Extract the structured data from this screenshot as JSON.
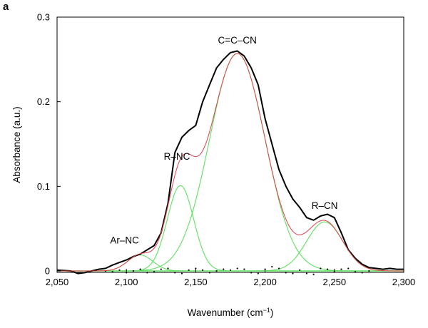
{
  "panel_label": "a",
  "chart_data": {
    "type": "line",
    "title": "",
    "xlabel": "Wavenumber (cm",
    "xlabel_sup": "−1",
    "xlabel_close": ")",
    "ylabel": "Absorbance (a.u.)",
    "xlim": [
      2050,
      2300
    ],
    "ylim": [
      -0.015,
      0.3
    ],
    "xticks": [
      2050,
      2100,
      2150,
      2200,
      2250,
      2300
    ],
    "xtick_labels": [
      "2,050",
      "2,100",
      "2,150",
      "2,200",
      "2,250",
      "2,300"
    ],
    "yticks": [
      0,
      0.1,
      0.2,
      0.3
    ],
    "ytick_labels": [
      "0",
      "0.1",
      "0.2",
      "0.3"
    ],
    "grid": false,
    "colors": {
      "measured": "#000000",
      "fit": "#e0404a",
      "component": "#5ee05e",
      "residual": "#000000"
    },
    "components": [
      {
        "name": "Ar–NC",
        "center": 2110,
        "height": 0.019,
        "sigma": 9
      },
      {
        "name": "R–NC",
        "center": 2139,
        "height": 0.101,
        "sigma": 9.5
      },
      {
        "name": "C=C–CN",
        "center": 2180,
        "height": 0.257,
        "sigma": 20
      },
      {
        "name": "R–CN",
        "center": 2243,
        "height": 0.058,
        "sigma": 13
      }
    ],
    "measured": {
      "x": [
        2050,
        2060,
        2065,
        2070,
        2075,
        2080,
        2085,
        2090,
        2095,
        2100,
        2105,
        2110,
        2115,
        2120,
        2125,
        2130,
        2135,
        2140,
        2145,
        2150,
        2155,
        2160,
        2165,
        2170,
        2175,
        2180,
        2185,
        2190,
        2195,
        2200,
        2205,
        2210,
        2215,
        2220,
        2225,
        2230,
        2235,
        2240,
        2245,
        2250,
        2255,
        2260,
        2265,
        2270,
        2275,
        2280,
        2285,
        2290,
        2295,
        2300
      ],
      "y": [
        0.001,
        0.0,
        -0.003,
        -0.002,
        0.0,
        0.002,
        0.003,
        0.007,
        0.01,
        0.013,
        0.017,
        0.02,
        0.025,
        0.03,
        0.045,
        0.08,
        0.14,
        0.158,
        0.166,
        0.172,
        0.2,
        0.22,
        0.24,
        0.25,
        0.258,
        0.26,
        0.254,
        0.24,
        0.22,
        0.18,
        0.15,
        0.12,
        0.1,
        0.085,
        0.075,
        0.063,
        0.06,
        0.065,
        0.067,
        0.063,
        0.045,
        0.025,
        0.015,
        0.008,
        0.004,
        0.003,
        0.002,
        0.003,
        0.002,
        0.002
      ]
    },
    "residual": {
      "x": [
        2085,
        2090,
        2095,
        2100,
        2105,
        2110,
        2115,
        2120,
        2125,
        2130,
        2135,
        2140,
        2145,
        2150,
        2155,
        2160,
        2165,
        2170,
        2175,
        2180,
        2185,
        2190,
        2195,
        2200,
        2205,
        2210,
        2215,
        2220,
        2225,
        2230,
        2235,
        2240,
        2245,
        2250,
        2255,
        2260,
        2265,
        2270,
        2275
      ],
      "y": [
        0.0,
        -0.001,
        0.001,
        -0.002,
        0.0,
        0.002,
        -0.002,
        -0.001,
        0.002,
        0.003,
        -0.002,
        -0.003,
        0.001,
        0.003,
        0.001,
        -0.002,
        0.0,
        0.002,
        0.001,
        0.003,
        0.002,
        -0.002,
        -0.003,
        0.002,
        0.005,
        0.003,
        -0.002,
        -0.003,
        0.001,
        -0.003,
        -0.004,
        0.003,
        0.002,
        -0.001,
        0.002,
        0.003,
        -0.001,
        -0.002,
        0.0
      ]
    }
  }
}
